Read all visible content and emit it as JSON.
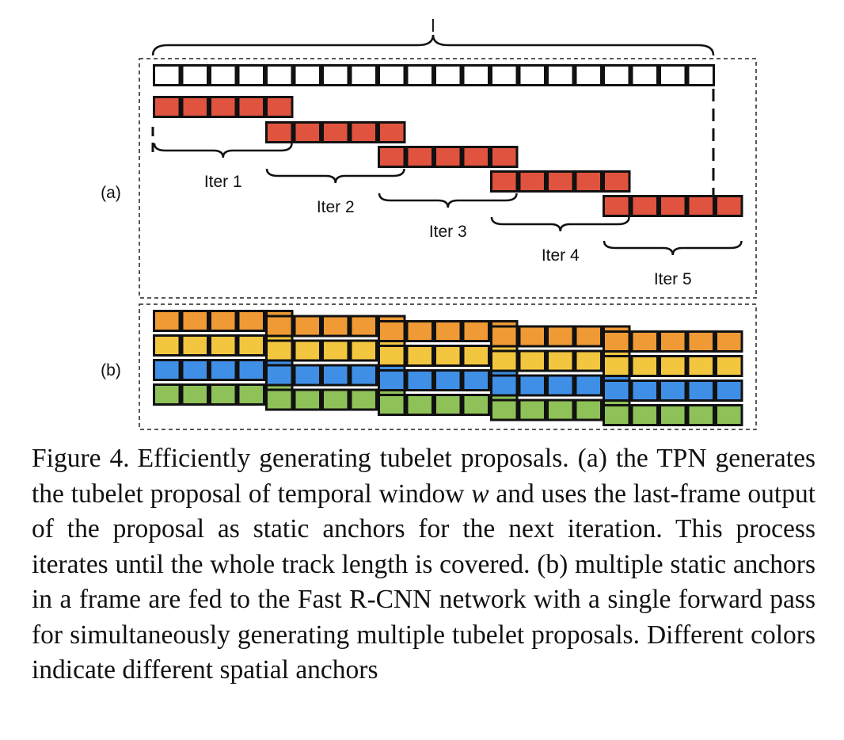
{
  "figure": {
    "top_label": "l",
    "panel_a_label": "(a)",
    "panel_b_label": "(b)",
    "iterations": [
      "Iter 1",
      "Iter 2",
      "Iter 3",
      "Iter 4",
      "Iter 5"
    ],
    "colors": {
      "frame": "#ffffff",
      "red": "#e0533f",
      "orange": "#ef9a35",
      "yellow": "#f3c640",
      "blue": "#3f8fe6",
      "green": "#8ec157",
      "outline": "#111111"
    },
    "track_frames": 20,
    "window_frames": 5,
    "anchor_rows": [
      "orange",
      "yellow",
      "blue",
      "green"
    ]
  },
  "caption": {
    "number": "Figure 4.",
    "part1": "Efficiently generating tubelet proposals.  (a) the TPN generates the tubelet proposal of temporal window ",
    "variable": "w",
    "part2": " and uses the last-frame output of the proposal as static anchors for the next iteration. This process iterates until the whole track length is covered. (b) multiple static anchors in a frame are fed to the Fast R-CNN network with a single forward pass for simultaneously generating multiple tubelet proposals. Different colors indicate different spatial anchors"
  }
}
